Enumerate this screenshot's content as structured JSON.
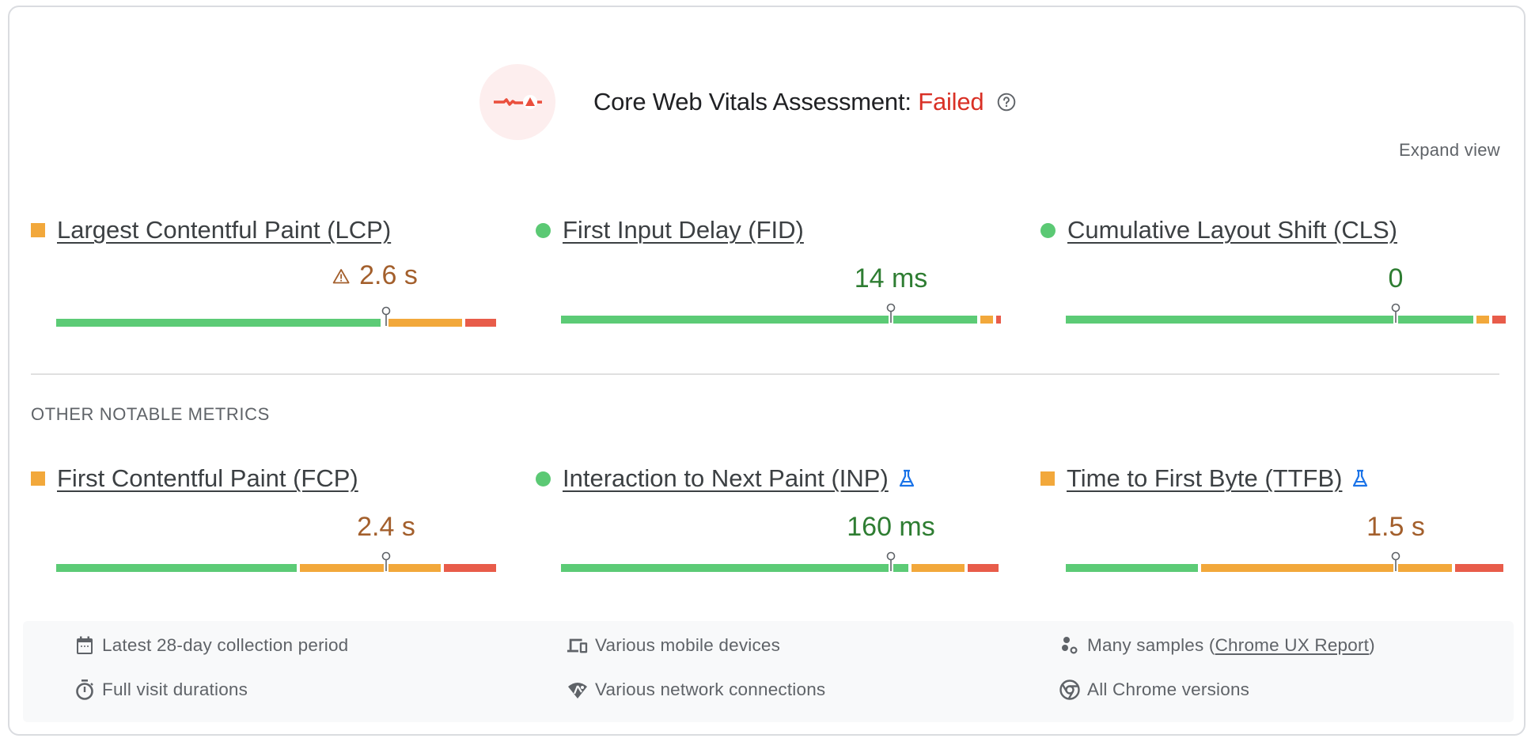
{
  "assessment": {
    "title_prefix": "Core Web Vitals Assessment: ",
    "status": "Failed",
    "status_color": "#d93025",
    "icon": "failed-vitals-icon",
    "help_icon": "help-circle-icon"
  },
  "expand_view_label": "Expand view",
  "core_metrics": [
    {
      "name": "Largest Contentful Paint (LCP)",
      "value": "2.6 s",
      "rating": "needs-improvement",
      "indicator": "square",
      "warning": true,
      "experimental": false,
      "distribution": {
        "good": 74,
        "needs_improvement": 18,
        "poor": 7
      },
      "marker_pct": 75
    },
    {
      "name": "First Input Delay (FID)",
      "value": "14 ms",
      "rating": "good",
      "indicator": "circle",
      "warning": false,
      "experimental": false,
      "distribution": {
        "good": 95,
        "needs_improvement": 3,
        "poor": 1
      },
      "marker_pct": 75
    },
    {
      "name": "Cumulative Layout Shift (CLS)",
      "value": "0",
      "rating": "good",
      "indicator": "circle",
      "warning": false,
      "experimental": false,
      "distribution": {
        "good": 93,
        "needs_improvement": 3,
        "poor": 3
      },
      "marker_pct": 75
    }
  ],
  "other_section_label": "OTHER NOTABLE METRICS",
  "other_metrics": [
    {
      "name": "First Contentful Paint (FCP)",
      "value": "2.4 s",
      "rating": "needs-improvement",
      "indicator": "square",
      "warning": false,
      "experimental": false,
      "distribution": {
        "good": 55,
        "needs_improvement": 32,
        "poor": 12
      },
      "marker_pct": 75
    },
    {
      "name": "Interaction to Next Paint (INP)",
      "value": "160 ms",
      "rating": "good",
      "indicator": "circle",
      "warning": false,
      "experimental": true,
      "distribution": {
        "good": 79,
        "needs_improvement": 12,
        "poor": 7
      },
      "marker_pct": 75
    },
    {
      "name": "Time to First Byte (TTFB)",
      "value": "1.5 s",
      "rating": "needs-improvement",
      "indicator": "square",
      "warning": false,
      "experimental": true,
      "distribution": {
        "good": 30,
        "needs_improvement": 57,
        "poor": 11
      },
      "marker_pct": 75
    }
  ],
  "colors": {
    "good": "#5ccb76",
    "needs_improvement": "#f2a83b",
    "poor": "#e85c4a",
    "good_text": "#2e7d32",
    "average_text": "#a35f2c",
    "experimental_icon": "#1a73e8"
  },
  "info": {
    "collection_period": {
      "icon": "calendar-icon",
      "text": "Latest 28-day collection period"
    },
    "visit_durations": {
      "icon": "stopwatch-icon",
      "text": "Full visit durations"
    },
    "devices": {
      "icon": "devices-icon",
      "text": "Various mobile devices"
    },
    "network": {
      "icon": "network-icon",
      "text": "Various network connections"
    },
    "samples": {
      "icon": "samples-icon",
      "text_prefix": "Many samples (",
      "link": "Chrome UX Report",
      "text_suffix": ")"
    },
    "chrome_versions": {
      "icon": "chrome-icon",
      "text": "All Chrome versions"
    }
  }
}
